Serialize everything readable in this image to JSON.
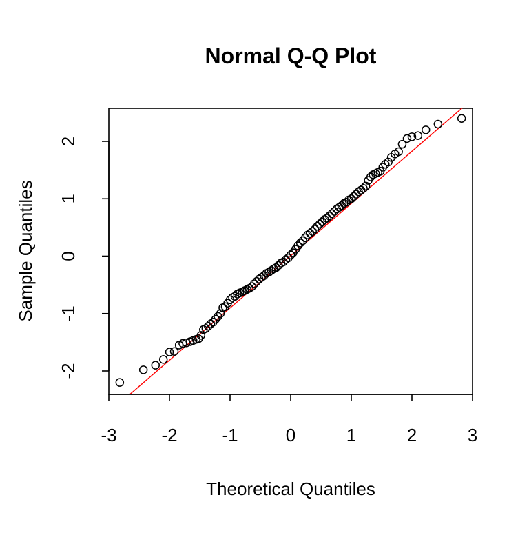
{
  "chart_data": {
    "type": "scatter",
    "title": "Normal Q-Q Plot",
    "xlabel": "Theoretical Quantiles",
    "ylabel": "Sample Quantiles",
    "xlim": [
      -3,
      3
    ],
    "ylim": [
      -2.4,
      2.6
    ],
    "x_ticks": [
      "-3",
      "-2",
      "-1",
      "0",
      "1",
      "2",
      "3"
    ],
    "y_ticks": [
      "-2",
      "-1",
      "0",
      "1",
      "2"
    ],
    "grid": false,
    "point_color": "#000000",
    "line_color": "#ff0000",
    "reference_line": {
      "x": [
        -2.7,
        2.85
      ],
      "y": [
        -2.45,
        2.6
      ]
    },
    "points": {
      "x": [
        -2.82,
        -2.43,
        -2.23,
        -2.1,
        -2.0,
        -1.92,
        -1.84,
        -1.78,
        -1.72,
        -1.66,
        -1.61,
        -1.56,
        -1.52,
        -1.48,
        -1.44,
        -1.4,
        -1.36,
        -1.32,
        -1.28,
        -1.24,
        -1.2,
        -1.16,
        -1.12,
        -1.08,
        -1.04,
        -1.0,
        -0.96,
        -0.92,
        -0.88,
        -0.84,
        -0.8,
        -0.76,
        -0.72,
        -0.68,
        -0.64,
        -0.6,
        -0.56,
        -0.52,
        -0.48,
        -0.44,
        -0.4,
        -0.36,
        -0.32,
        -0.28,
        -0.24,
        -0.2,
        -0.16,
        -0.12,
        -0.08,
        -0.04,
        0.0,
        0.04,
        0.08,
        0.12,
        0.16,
        0.2,
        0.24,
        0.28,
        0.32,
        0.36,
        0.4,
        0.44,
        0.48,
        0.52,
        0.56,
        0.6,
        0.64,
        0.68,
        0.72,
        0.76,
        0.8,
        0.84,
        0.88,
        0.92,
        0.96,
        1.0,
        1.04,
        1.08,
        1.12,
        1.16,
        1.2,
        1.24,
        1.28,
        1.32,
        1.36,
        1.4,
        1.44,
        1.48,
        1.52,
        1.56,
        1.61,
        1.66,
        1.72,
        1.78,
        1.84,
        1.92,
        2.0,
        2.1,
        2.23,
        2.43,
        2.82
      ],
      "y": [
        -2.2,
        -1.98,
        -1.9,
        -1.8,
        -1.67,
        -1.66,
        -1.55,
        -1.52,
        -1.51,
        -1.49,
        -1.47,
        -1.45,
        -1.44,
        -1.38,
        -1.28,
        -1.26,
        -1.22,
        -1.18,
        -1.15,
        -1.1,
        -1.05,
        -1.0,
        -0.9,
        -0.88,
        -0.82,
        -0.76,
        -0.72,
        -0.7,
        -0.66,
        -0.64,
        -0.62,
        -0.6,
        -0.58,
        -0.56,
        -0.53,
        -0.48,
        -0.44,
        -0.4,
        -0.37,
        -0.34,
        -0.3,
        -0.28,
        -0.25,
        -0.22,
        -0.2,
        -0.16,
        -0.12,
        -0.1,
        -0.06,
        -0.03,
        0.02,
        0.06,
        0.12,
        0.18,
        0.23,
        0.27,
        0.32,
        0.37,
        0.4,
        0.43,
        0.47,
        0.52,
        0.56,
        0.6,
        0.64,
        0.66,
        0.7,
        0.74,
        0.78,
        0.82,
        0.85,
        0.88,
        0.92,
        0.94,
        0.98,
        1.0,
        1.04,
        1.08,
        1.12,
        1.15,
        1.18,
        1.22,
        1.32,
        1.38,
        1.42,
        1.44,
        1.46,
        1.48,
        1.55,
        1.6,
        1.64,
        1.72,
        1.78,
        1.82,
        1.95,
        2.05,
        2.08,
        2.1,
        2.2,
        2.3,
        2.4
      ]
    }
  }
}
